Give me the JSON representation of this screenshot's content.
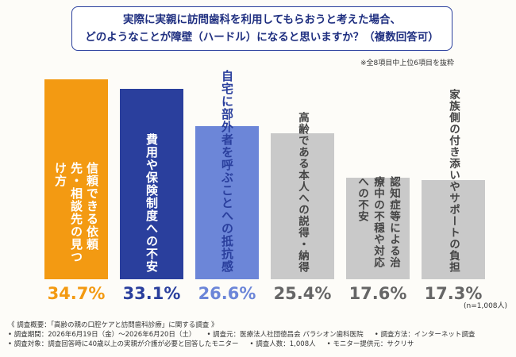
{
  "chart_data": {
    "type": "bar",
    "title": [
      "実際に実親に訪問歯科を利用してもらおうと考えた場合、",
      "どのようなことが障壁（ハードル）になると思いますか？（複数回答可）"
    ],
    "note": "※全8項目中上位6項目を抜粋",
    "sample": "(n=1,008人)",
    "categories": [
      "信頼できる依頼先・相談先の見つけ方",
      "費用や保険制度への不安",
      "自宅に部外者を呼ぶことへの抵抗感",
      "高齢である本人への説得・納得",
      "認知症等による治療中の不穏や対応への不安",
      "家族側の付き添いやサポートの負担"
    ],
    "values": [
      34.7,
      33.1,
      26.6,
      25.4,
      17.6,
      17.3
    ],
    "value_labels": [
      "34.7%",
      "33.1%",
      "26.6%",
      "25.4%",
      "17.6%",
      "17.3%"
    ],
    "colors": [
      "#f39a12",
      "#2a3f9d",
      "#6c86d8",
      "#c9c9c9",
      "#c9c9c9",
      "#c9c9c9"
    ]
  },
  "footer": {
    "heading": "《 調査概要：「高齢の親の口腔ケアと訪問歯科診療」に関する調査 》",
    "items": [
      "• 調査期間：2026年6月19日（金）〜2026年6月20日（土）",
      "• 調査元：医療法人社団徳昌会 パラシオン歯科医院",
      "• 調査方法：インターネット調査",
      "• 調査対象：調査回答時に40歳以上の実親が介護が必要と回答したモニター",
      "• 調査人数：1,008人",
      "• モニター提供元：サクリサ"
    ]
  }
}
